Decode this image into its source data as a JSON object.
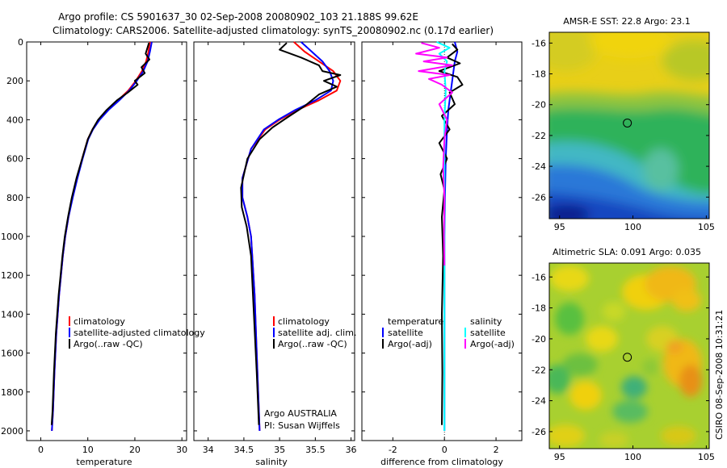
{
  "header": {
    "line1": "Argo profile: CS 5901637_30 02-Sep-2008 20080902_103 21.188S 99.62E",
    "line2": "Climatology: CARS2006. Satellite-adjusted climatology: synTS_20080902.nc (0.17d earlier)"
  },
  "side_text": "CSIRO 08-Sep-2008 10:31:21",
  "colors": {
    "climatology": "#ff0000",
    "satellite": "#0000ff",
    "argo": "#000000",
    "sal_satellite": "#00ffff",
    "sal_argo": "#ff00ff"
  },
  "chart_data": [
    {
      "type": "line",
      "id": "temperature",
      "xlabel": "temperature",
      "xlim": [
        -3,
        31
      ],
      "ylim": [
        0,
        2050
      ],
      "xticks": [
        0,
        10,
        20,
        30
      ],
      "xticklabels": [
        "0",
        "10",
        "20",
        "30"
      ],
      "yticks": [
        0,
        200,
        400,
        600,
        800,
        1000,
        1200,
        1400,
        1600,
        1800,
        2000
      ],
      "yticklabels": [
        "0",
        "200",
        "400",
        "600",
        "800",
        "1000",
        "1200",
        "1400",
        "1600",
        "1800",
        "2000"
      ],
      "legend": [
        "climatology",
        "satellite-adjusted climatology",
        "Argo(..raw -QC)"
      ],
      "series": [
        {
          "name": "climatology",
          "color": "#ff0000",
          "x": [
            23.2,
            22.9,
            22.4,
            21.5,
            20.2,
            18.6,
            16.4,
            14.2,
            12.3,
            11.0,
            10.0,
            8.8,
            7.7,
            6.7,
            5.9,
            5.2,
            4.7,
            3.9,
            3.3,
            2.9,
            2.6,
            2.35
          ],
          "y": [
            0,
            50,
            100,
            150,
            200,
            250,
            300,
            350,
            400,
            450,
            500,
            600,
            700,
            800,
            900,
            1000,
            1100,
            1300,
            1500,
            1700,
            1900,
            2000
          ]
        },
        {
          "name": "satellite-adjusted climatology",
          "color": "#0000ff",
          "x": [
            23.6,
            23.2,
            22.7,
            21.8,
            20.4,
            18.8,
            16.7,
            14.4,
            12.5,
            11.1,
            10.1,
            8.9,
            7.8,
            6.8,
            5.9,
            5.2,
            4.7,
            3.9,
            3.3,
            2.9,
            2.6,
            2.35
          ],
          "y": [
            0,
            50,
            100,
            150,
            200,
            250,
            300,
            350,
            400,
            450,
            500,
            600,
            700,
            800,
            900,
            1000,
            1100,
            1300,
            1500,
            1700,
            1900,
            2000
          ]
        },
        {
          "name": "Argo(..raw -QC)",
          "color": "#000000",
          "x": [
            23.0,
            22.3,
            23.1,
            21.4,
            22.1,
            20.0,
            20.6,
            18.5,
            16.2,
            14.0,
            12.2,
            11.0,
            10.0,
            8.8,
            7.6,
            6.6,
            5.8,
            5.1,
            4.6,
            3.8,
            3.2,
            2.8,
            2.5,
            2.3
          ],
          "y": [
            5,
            60,
            90,
            130,
            160,
            200,
            220,
            260,
            300,
            350,
            400,
            450,
            500,
            600,
            700,
            800,
            900,
            1000,
            1100,
            1300,
            1500,
            1700,
            1900,
            1970
          ]
        }
      ]
    },
    {
      "type": "line",
      "id": "salinity",
      "xlabel": "salinity",
      "xlim": [
        33.8,
        36.05
      ],
      "ylim": [
        0,
        2050
      ],
      "xticks": [
        34,
        34.5,
        35,
        35.5,
        36
      ],
      "xticklabels": [
        "34",
        "34.5",
        "35",
        "35.5",
        "36"
      ],
      "legend": [
        "climatology",
        "satellite adj. clim.",
        "Argo(..raw -QC)"
      ],
      "annotation": [
        "Argo AUSTRALIA",
        "PI: Susan Wijffels"
      ],
      "series": [
        {
          "name": "climatology",
          "color": "#ff0000",
          "x": [
            35.2,
            35.35,
            35.55,
            35.75,
            35.85,
            35.8,
            35.55,
            35.25,
            35.0,
            34.8,
            34.6,
            34.48,
            34.48,
            34.55,
            34.6,
            34.65,
            34.68,
            34.72
          ],
          "y": [
            0,
            50,
            100,
            150,
            200,
            250,
            300,
            350,
            400,
            450,
            550,
            700,
            800,
            900,
            1000,
            1300,
            1600,
            2000
          ]
        },
        {
          "name": "satellite adj. clim.",
          "color": "#0000ff",
          "x": [
            35.3,
            35.45,
            35.6,
            35.7,
            35.75,
            35.72,
            35.5,
            35.22,
            34.98,
            34.78,
            34.6,
            34.48,
            34.48,
            34.55,
            34.6,
            34.65,
            34.68,
            34.72
          ],
          "y": [
            0,
            50,
            100,
            150,
            200,
            250,
            300,
            350,
            400,
            450,
            550,
            700,
            800,
            900,
            1000,
            1300,
            1600,
            2000
          ]
        },
        {
          "name": "Argo(..raw -QC)",
          "color": "#000000",
          "x": [
            35.1,
            35.0,
            35.3,
            35.55,
            35.6,
            35.85,
            35.62,
            35.8,
            35.55,
            35.35,
            35.1,
            34.9,
            34.72,
            34.55,
            34.46,
            34.47,
            34.54,
            34.6,
            34.64,
            34.68,
            34.71
          ],
          "y": [
            5,
            40,
            80,
            120,
            150,
            170,
            200,
            230,
            270,
            330,
            390,
            440,
            500,
            600,
            750,
            850,
            950,
            1100,
            1400,
            1700,
            1970
          ]
        }
      ]
    },
    {
      "type": "line",
      "id": "difference",
      "xlabel": "difference from climatology",
      "xlim": [
        -3.2,
        3.0
      ],
      "ylim": [
        0,
        2050
      ],
      "xticks": [
        -2,
        0,
        2
      ],
      "xticklabels": [
        "-2",
        "0",
        "2"
      ],
      "legend": {
        "temperature": [
          "temperature",
          "satellite",
          "Argo(-adj)"
        ],
        "salinity": [
          "salinity",
          "satellite",
          "Argo(-adj)"
        ]
      },
      "series": [
        {
          "name": "temperature satellite",
          "color": "#0000ff",
          "x": [
            0.4,
            0.5,
            0.4,
            0.35,
            0.25,
            0.15,
            0.1,
            0.05,
            0.02,
            0.0,
            0.0,
            0.0
          ],
          "y": [
            0,
            50,
            100,
            150,
            250,
            350,
            450,
            600,
            800,
            1000,
            1500,
            2000
          ]
        },
        {
          "name": "temperature Argo(-adj)",
          "color": "#000000",
          "x": [
            0.3,
            0.5,
            0.1,
            0.6,
            -0.2,
            0.5,
            0.7,
            0.2,
            0.4,
            -0.1,
            0.2,
            -0.2,
            0.1,
            -0.15,
            0.0,
            -0.1,
            -0.05,
            -0.1,
            -0.08,
            -0.1
          ],
          "y": [
            10,
            40,
            80,
            110,
            150,
            180,
            220,
            260,
            320,
            380,
            450,
            520,
            600,
            680,
            760,
            900,
            1100,
            1400,
            1700,
            1970
          ]
        },
        {
          "name": "salinity satellite",
          "color": "#00ffff",
          "x": [
            -0.3,
            0.2,
            -0.2,
            0.1,
            0.0,
            0.05,
            0.0,
            0.0,
            0.0,
            0.0
          ],
          "y": [
            0,
            30,
            60,
            100,
            150,
            250,
            400,
            700,
            1200,
            2000
          ]
        },
        {
          "name": "salinity Argo(-adj)",
          "color": "#ff00ff",
          "x": [
            -0.9,
            -0.2,
            -1.1,
            0.1,
            -0.8,
            0.3,
            -1.0,
            0.2,
            -0.6,
            -0.1,
            0.3,
            -0.2,
            0.1,
            0.0,
            -0.05,
            0.0,
            -0.02,
            0.0
          ],
          "y": [
            5,
            30,
            60,
            80,
            100,
            120,
            150,
            170,
            190,
            220,
            260,
            320,
            400,
            500,
            650,
            800,
            1000,
            1150
          ]
        }
      ]
    },
    {
      "type": "heatmap",
      "id": "sst_map",
      "title": "AMSR-E SST: 22.8 Argo: 23.1",
      "xlim": [
        94.3,
        105.2
      ],
      "ylim": [
        -27.4,
        -15.3
      ],
      "xticks": [
        95,
        100,
        105
      ],
      "xticklabels": [
        "95",
        "100",
        "105"
      ],
      "yticks": [
        -16,
        -18,
        -20,
        -22,
        -24,
        -26
      ],
      "yticklabels": [
        "-16",
        "-18",
        "-20",
        "-22",
        "-24",
        "-26"
      ],
      "marker": {
        "lon": 99.62,
        "lat": -21.19
      }
    },
    {
      "type": "heatmap",
      "id": "sla_map",
      "title": "Altimetric SLA: 0.091 Argo: 0.035",
      "xlim": [
        94.3,
        105.2
      ],
      "ylim": [
        -27.1,
        -15.1
      ],
      "xticks": [
        95,
        100,
        105
      ],
      "xticklabels": [
        "95",
        "100",
        "105"
      ],
      "yticks": [
        -16,
        -18,
        -20,
        -22,
        -24,
        -26
      ],
      "yticklabels": [
        "-16",
        "-18",
        "-20",
        "-22",
        "-24",
        "-26"
      ],
      "marker": {
        "lon": 99.62,
        "lat": -21.19
      }
    }
  ]
}
